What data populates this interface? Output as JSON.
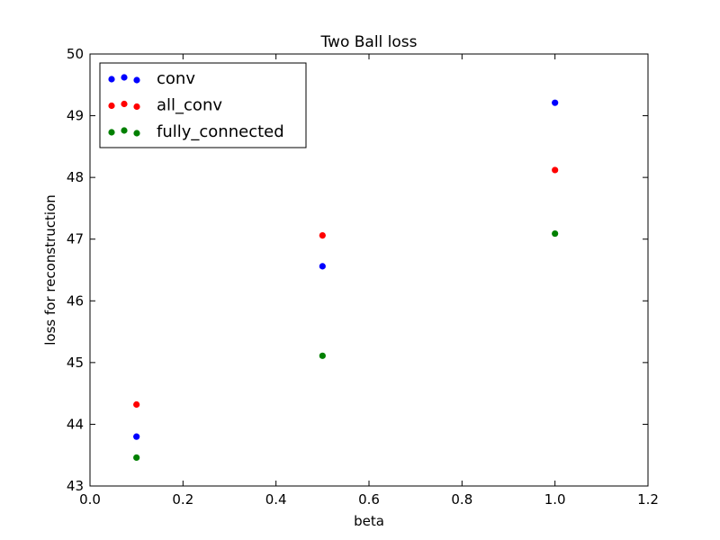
{
  "chart_data": {
    "type": "scatter",
    "title": "Two Ball loss",
    "xlabel": "beta",
    "ylabel": "loss for reconstruction",
    "xlim": [
      0.0,
      1.2
    ],
    "ylim": [
      43,
      50
    ],
    "xticks": [
      "0.0",
      "0.2",
      "0.4",
      "0.6",
      "0.8",
      "1.0",
      "1.2"
    ],
    "yticks": [
      "43",
      "44",
      "45",
      "46",
      "47",
      "48",
      "49",
      "50"
    ],
    "grid": false,
    "legend_position": "upper-left",
    "series": [
      {
        "name": "conv",
        "color": "#0000ff",
        "x": [
          0.1,
          0.5,
          1.0
        ],
        "y": [
          43.8,
          46.56,
          49.21
        ]
      },
      {
        "name": "all_conv",
        "color": "#ff0000",
        "x": [
          0.1,
          0.5,
          1.0
        ],
        "y": [
          44.32,
          47.06,
          48.12
        ]
      },
      {
        "name": "fully_connected",
        "color": "#008000",
        "x": [
          0.1,
          0.5,
          1.0
        ],
        "y": [
          43.46,
          45.11,
          47.09
        ]
      }
    ]
  }
}
